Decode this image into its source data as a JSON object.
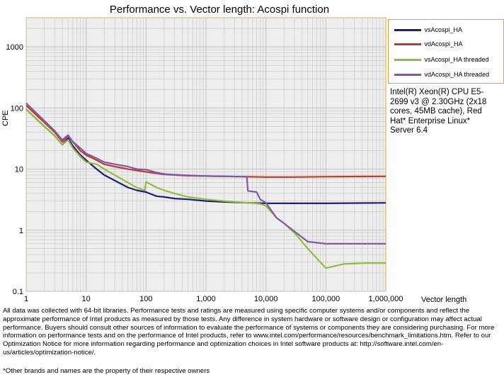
{
  "chart_data": {
    "type": "line",
    "title": "Performance vs. Vector length: Acospi function",
    "xlabel": "Vector length",
    "ylabel": "CPE",
    "x_scale": "log",
    "y_scale": "log",
    "xlim": [
      1,
      1000000
    ],
    "ylim": [
      0.1,
      3000
    ],
    "x_ticks": [
      1,
      10,
      100,
      1000,
      10000,
      100000,
      1000000
    ],
    "x_tick_labels": [
      "1",
      "10",
      "100",
      "1,000",
      "10,000",
      "100,000",
      "1,000,000"
    ],
    "y_ticks": [
      0.1,
      1,
      10,
      100,
      1000
    ],
    "y_tick_labels": [
      "0.1",
      "1",
      "10",
      "100",
      "1000"
    ],
    "grid": true,
    "legend_position": "top-right",
    "series": [
      {
        "name": "vsAcospi_HA",
        "color": "#1f1f7a",
        "x": [
          1,
          2,
          3,
          4,
          5,
          6,
          8,
          10,
          15,
          20,
          30,
          50,
          70,
          100,
          150,
          200,
          300,
          500,
          1000,
          2000,
          5000,
          10000,
          30000,
          100000,
          1000000
        ],
        "y": [
          95,
          50,
          35,
          25,
          32,
          24,
          17,
          14,
          10,
          8,
          6.5,
          5,
          4.5,
          4.2,
          3.6,
          3.5,
          3.3,
          3.2,
          3.0,
          2.9,
          2.8,
          2.75,
          2.75,
          2.75,
          2.8
        ]
      },
      {
        "name": "vdAcospi_HA",
        "color": "#c0392b",
        "x": [
          1,
          2,
          3,
          4,
          5,
          6,
          8,
          10,
          15,
          20,
          30,
          50,
          70,
          100,
          150,
          200,
          300,
          500,
          1000,
          2000,
          5000,
          10000,
          30000,
          100000,
          1000000
        ],
        "y": [
          110,
          58,
          40,
          28,
          35,
          28,
          20,
          17,
          14,
          12,
          11,
          10,
          9.5,
          9,
          8.5,
          8.2,
          8,
          7.8,
          7.7,
          7.6,
          7.5,
          7.4,
          7.4,
          7.5,
          7.6
        ]
      },
      {
        "name": "vsAcospi_HA threaded",
        "color": "#8fbf3f",
        "x": [
          1,
          2,
          3,
          4,
          5,
          6,
          8,
          10,
          15,
          20,
          30,
          50,
          70,
          95,
          100,
          150,
          200,
          300,
          500,
          1000,
          2000,
          5000,
          8000,
          10000,
          15000,
          20000,
          30000,
          50000,
          70000,
          100000,
          200000,
          500000,
          1000000
        ],
        "y": [
          95,
          50,
          35,
          25,
          30,
          22,
          16,
          13,
          12,
          10,
          8,
          6,
          5,
          4.5,
          6.2,
          5,
          4.5,
          4,
          3.5,
          3.2,
          3.0,
          2.8,
          2.7,
          2.5,
          1.6,
          1.3,
          0.9,
          0.5,
          0.35,
          0.24,
          0.28,
          0.29,
          0.29
        ]
      },
      {
        "name": "vdAcospi_HA threaded",
        "color": "#7f5aa8",
        "x": [
          1,
          2,
          3,
          4,
          5,
          6,
          8,
          10,
          15,
          20,
          30,
          50,
          70,
          100,
          150,
          200,
          300,
          500,
          1000,
          2000,
          4800,
          5000,
          7000,
          8000,
          10000,
          15000,
          20000,
          30000,
          50000,
          100000,
          500000,
          1000000
        ],
        "y": [
          120,
          62,
          42,
          30,
          36,
          28,
          22,
          18,
          15,
          13,
          12,
          11,
          10,
          9.8,
          8.8,
          8.3,
          8.1,
          7.9,
          7.7,
          7.6,
          7.5,
          4.4,
          4.2,
          3.2,
          2.8,
          1.6,
          1.3,
          0.95,
          0.65,
          0.6,
          0.6,
          0.6
        ]
      }
    ]
  },
  "system_note": "Intel(R) Xeon(R) CPU E5-2699 v3 @ 2.30GHz (2x18 cores, 45MB cache), Red Hat* Enterprise Linux* Server 6.4",
  "disclaimer": "All data was collected with 64-bit libraries. Performance tests and ratings are measured using specific computer systems and/or components and reflect the approximate performance of Intel products as measured by those tests. Any difference in system hardware or software design or configuration may affect actual performance. Buyers should consult other sources of information to evaluate the performance of systems or components they are considering purchasing. For more information on performance tests and on the performance of Intel products, refer to www.intel.com/performance/resources/benchmark_limitations.htm. Refer to our Optimization Notice for more information regarding performance and optimization choices in Intel software products at: http://software.intel.com/en-us/articles/optimization-notice/.",
  "footnote": "*Other brands and names are the property of their respective owners",
  "colors": {
    "plot_border": "#f0a030",
    "plot_bg": "#eeeeee",
    "grid": "#bdbdbd"
  }
}
